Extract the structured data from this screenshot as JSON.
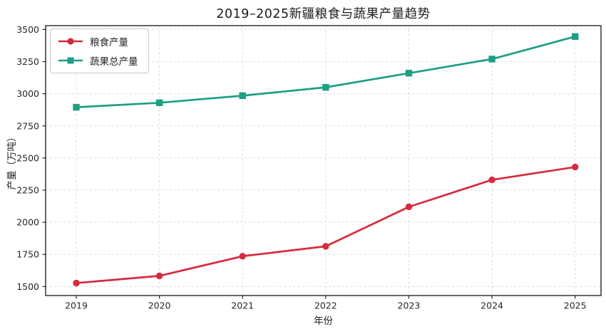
{
  "chart_data": {
    "type": "line",
    "title": "2019–2025新疆粮食与蔬果产量趋势",
    "xlabel": "年份",
    "ylabel": "产量（万吨）",
    "x": [
      2019,
      2020,
      2021,
      2022,
      2023,
      2024,
      2025
    ],
    "series": [
      {
        "name": "粮食产量",
        "color": "#d62b3e",
        "marker": "circle",
        "values": [
          1527,
          1583,
          1736,
          1813,
          2120,
          2330,
          2430
        ]
      },
      {
        "name": "蔬果总产量",
        "color": "#1d9f85",
        "marker": "square",
        "values": [
          2895,
          2930,
          2985,
          3050,
          3160,
          3270,
          3445
        ]
      }
    ],
    "ylim": [
      1430,
      3530
    ],
    "yticks": [
      1500,
      1750,
      2000,
      2250,
      2500,
      2750,
      3000,
      3250,
      3500
    ],
    "grid": true,
    "grid_style": "dashed",
    "grid_color": "#dcdcdc",
    "axis_color": "#262626",
    "legend_position": "upper-left",
    "background": "#ffffff"
  }
}
